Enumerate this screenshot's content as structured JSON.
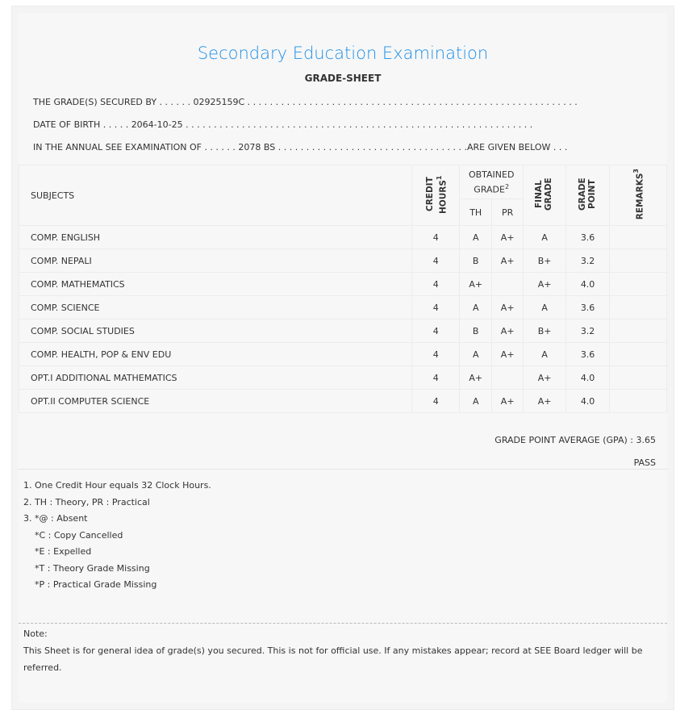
{
  "header": {
    "title": "Secondary Education Examination",
    "subtitle": "GRADE-SHEET",
    "secured_label": "THE GRADE(S) SECURED BY . . . . . .",
    "symbol_no": "02925159C",
    "secured_dots": " . . . . . . . . . . . . . . . . . . . . . . . . . . . . . . . . . . . . . . . . . . . . . . . . . . . . . . . . . . .",
    "dob_label": "DATE OF BIRTH . . . . .",
    "dob": "2064-10-25",
    "dob_dots": " . . . . . . . . . . . . . . . . . . . . . . . . . . . . . . . . . . . . . . . . . . . . . . . . . . . . . . . . . . . . . .",
    "exam_label": "IN THE ANNUAL SEE EXAMINATION OF . . . . . .",
    "exam_year": "2078 BS",
    "exam_dots": " . . . . . . . . . . . . . . . . . . . . . . . . . . . . . . . . . .",
    "given_below": "ARE GIVEN BELOW . . ."
  },
  "table": {
    "headers": {
      "subjects": "SUBJECTS",
      "credit": "CREDIT HOURS",
      "credit_sup": "1",
      "obtained": "OBTAINED GRADE",
      "obtained_sup": "2",
      "th": "TH",
      "pr": "PR",
      "final": "FINAL GRADE",
      "gp": "GRADE POINT",
      "remarks": "REMARKS",
      "remarks_sup": "3"
    },
    "rows": [
      {
        "subject": "COMP. ENGLISH",
        "credit": "4",
        "th": "A",
        "pr": "A+",
        "final": "A",
        "gp": "3.6",
        "remarks": ""
      },
      {
        "subject": "COMP. NEPALI",
        "credit": "4",
        "th": "B",
        "pr": "A+",
        "final": "B+",
        "gp": "3.2",
        "remarks": ""
      },
      {
        "subject": "COMP. MATHEMATICS",
        "credit": "4",
        "th": "A+",
        "pr": "",
        "final": "A+",
        "gp": "4.0",
        "remarks": ""
      },
      {
        "subject": "COMP. SCIENCE",
        "credit": "4",
        "th": "A",
        "pr": "A+",
        "final": "A",
        "gp": "3.6",
        "remarks": ""
      },
      {
        "subject": "COMP. SOCIAL STUDIES",
        "credit": "4",
        "th": "B",
        "pr": "A+",
        "final": "B+",
        "gp": "3.2",
        "remarks": ""
      },
      {
        "subject": "COMP. HEALTH, POP & ENV EDU",
        "credit": "4",
        "th": "A",
        "pr": "A+",
        "final": "A",
        "gp": "3.6",
        "remarks": ""
      },
      {
        "subject": "OPT.I ADDITIONAL MATHEMATICS",
        "credit": "4",
        "th": "A+",
        "pr": "",
        "final": "A+",
        "gp": "4.0",
        "remarks": ""
      },
      {
        "subject": "OPT.II COMPUTER SCIENCE",
        "credit": "4",
        "th": "A",
        "pr": "A+",
        "final": "A+",
        "gp": "4.0",
        "remarks": ""
      }
    ]
  },
  "summary": {
    "gpa": "GRADE POINT AVERAGE (GPA) : 3.65",
    "result": "PASS"
  },
  "footnotes": [
    "1. One Credit Hour equals 32 Clock Hours.",
    "2. TH : Theory, PR : Practical",
    "3. *@ : Absent",
    "    *C : Copy Cancelled",
    "    *E : Expelled",
    "    *T : Theory Grade Missing",
    "    *P : Practical Grade Missing"
  ],
  "note": {
    "label": "Note:",
    "text": "This Sheet is for general idea of grade(s) you secured. This is not for official use. If any mistakes appear; record at SEE Board ledger will be referred."
  }
}
